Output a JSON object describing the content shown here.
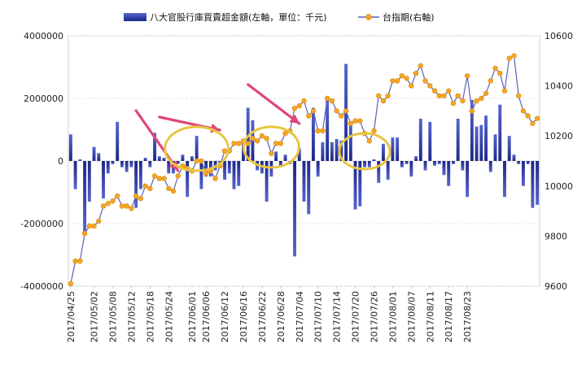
{
  "chart_data": {
    "type": "bar+line",
    "legend": {
      "bar_label": "八大官股行庫買賣超金額(左軸，單位：千元)",
      "line_label": "台指期(右軸)"
    },
    "colors": {
      "bar_top": "#5060c8",
      "bar_bottom": "#1f2a8c",
      "line": "#5a60b8",
      "marker": "#f5a623",
      "marker_edge": "#d88a10",
      "arrow": "#e0457a",
      "ellipse": "#e8c440",
      "grid": "#e6e6e6",
      "axis": "#cfcfcf"
    },
    "left_axis": {
      "ylim": [
        -4000000,
        4000000
      ],
      "ticks": [
        "4000000",
        "2000000",
        "0",
        "-2000000",
        "-4000000"
      ],
      "tick_values": [
        4000000,
        2000000,
        0,
        -2000000,
        -4000000
      ]
    },
    "right_axis": {
      "ylim": [
        9600,
        10600
      ],
      "ticks": [
        "10600",
        "10400",
        "10200",
        "10000",
        "9800",
        "9600"
      ],
      "tick_values": [
        10600,
        10400,
        10200,
        10000,
        9800,
        9600
      ]
    },
    "x_tick_labels": [
      "2017/04/25",
      "2017/05/02",
      "2017/05/08",
      "2017/05/12",
      "2017/05/18",
      "2017/05/24",
      "2017/06/01",
      "2017/06/06",
      "2017/06/12",
      "2017/06/16",
      "2017/06/22",
      "2017/06/28",
      "2017/07/04",
      "2017/07/10",
      "2017/07/14",
      "2017/07/20",
      "2017/07/26",
      "2017/08/01",
      "2017/08/07",
      "2017/08/11",
      "2017/08/17",
      "2017/08/23"
    ],
    "x_tick_index": [
      0,
      5,
      9,
      13,
      17,
      21,
      26,
      29,
      33,
      37,
      41,
      45,
      49,
      53,
      57,
      61,
      65,
      69,
      73,
      77,
      81,
      85
    ],
    "bar_values": [
      850000,
      -900000,
      50000,
      -2300000,
      -1300000,
      450000,
      250000,
      -1200000,
      -400000,
      -100000,
      1250000,
      -200000,
      -350000,
      -200000,
      -1500000,
      -900000,
      100000,
      -200000,
      900000,
      150000,
      100000,
      -400000,
      -400000,
      -100000,
      200000,
      -1150000,
      150000,
      800000,
      -900000,
      -500000,
      -500000,
      -300000,
      -100000,
      -600000,
      -400000,
      -900000,
      -800000,
      600000,
      1700000,
      1300000,
      -300000,
      -400000,
      -1300000,
      -500000,
      300000,
      -200000,
      200000,
      -100000,
      -3050000,
      400000,
      -1300000,
      -1700000,
      1700000,
      -500000,
      600000,
      1950000,
      600000,
      700000,
      650000,
      3100000,
      1250000,
      -1550000,
      -1450000,
      -200000,
      -200000,
      50000,
      -700000,
      550000,
      -600000,
      750000,
      750000,
      -200000,
      -100000,
      -500000,
      150000,
      1350000,
      -300000,
      1250000,
      -150000,
      -100000,
      -450000,
      -800000,
      -100000,
      1350000,
      -300000,
      -1150000,
      1950000,
      1100000,
      1150000,
      1450000,
      -350000,
      850000,
      1800000,
      -1150000,
      800000,
      200000,
      -100000,
      -800000,
      -100000,
      -1500000,
      -1400000
    ],
    "line_values": [
      9610,
      9700,
      9700,
      9810,
      9840,
      9840,
      9860,
      9920,
      9930,
      9940,
      9960,
      9920,
      9920,
      9910,
      9960,
      9950,
      10000,
      9990,
      10040,
      10030,
      10030,
      9990,
      9980,
      10040,
      10080,
      10070,
      10060,
      10100,
      10100,
      10050,
      10060,
      10030,
      10080,
      10140,
      10140,
      10170,
      10170,
      10180,
      10170,
      10190,
      10180,
      10200,
      10190,
      10130,
      10170,
      10170,
      10210,
      10220,
      10310,
      10320,
      10340,
      10280,
      10300,
      10220,
      10220,
      10350,
      10340,
      10300,
      10280,
      10300,
      10250,
      10260,
      10260,
      10210,
      10180,
      10220,
      10360,
      10340,
      10360,
      10420,
      10420,
      10440,
      10430,
      10400,
      10450,
      10480,
      10420,
      10400,
      10380,
      10360,
      10360,
      10380,
      10330,
      10360,
      10340,
      10440,
      10300,
      10340,
      10350,
      10370,
      10420,
      10470,
      10450,
      10380,
      10510,
      10520,
      10360,
      10300,
      10280,
      10250,
      10270
    ],
    "arrows": [
      {
        "from": [
          100,
          21
        ],
        "to": [
          113,
          74
        ]
      },
      {
        "from": [
          145,
          13
        ],
        "to": [
          168,
          82
        ]
      },
      {
        "from": [
          225,
          17
        ],
        "to": [
          242,
          85
        ]
      }
    ],
    "ellipses": [
      {
        "center": [
          113,
          74
        ],
        "rx": 7,
        "ry": 16
      },
      {
        "center": [
          169,
          82
        ],
        "rx": 7,
        "ry": 14
      },
      {
        "center": [
          254,
          87
        ],
        "rx": 9,
        "ry": 14
      }
    ]
  }
}
